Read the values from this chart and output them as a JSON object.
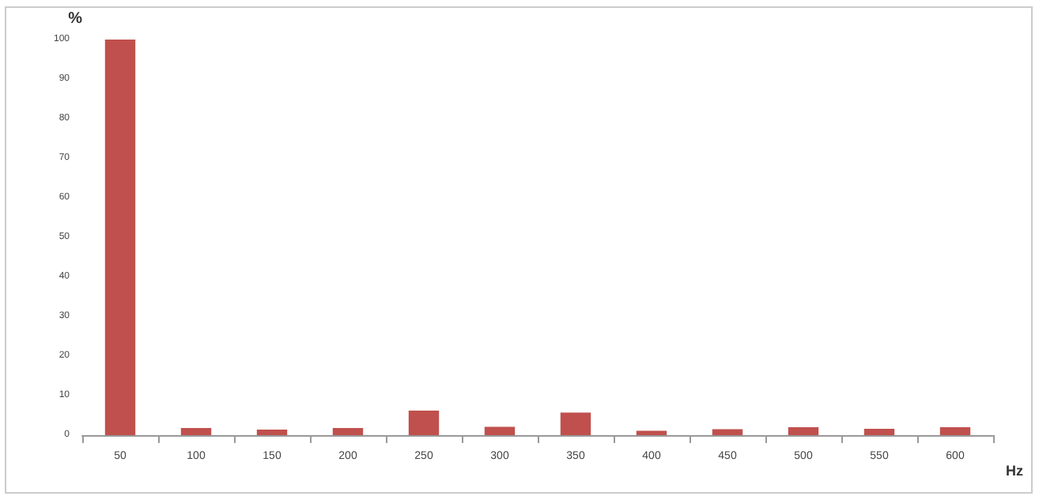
{
  "chart_data": {
    "type": "bar",
    "xlabel": "Hz",
    "ylabel": "%",
    "categories": [
      "50",
      "100",
      "150",
      "200",
      "250",
      "300",
      "350",
      "400",
      "450",
      "500",
      "550",
      "600"
    ],
    "values": [
      100,
      1.8,
      1.4,
      1.8,
      6.2,
      2.1,
      5.7,
      1.1,
      1.5,
      2.0,
      1.6,
      2.0
    ],
    "color": "#c0504d",
    "ylim": [
      0,
      100
    ],
    "yticks": [
      0,
      10,
      20,
      30,
      40,
      50,
      60,
      70,
      80,
      90,
      100
    ],
    "grid": false
  }
}
